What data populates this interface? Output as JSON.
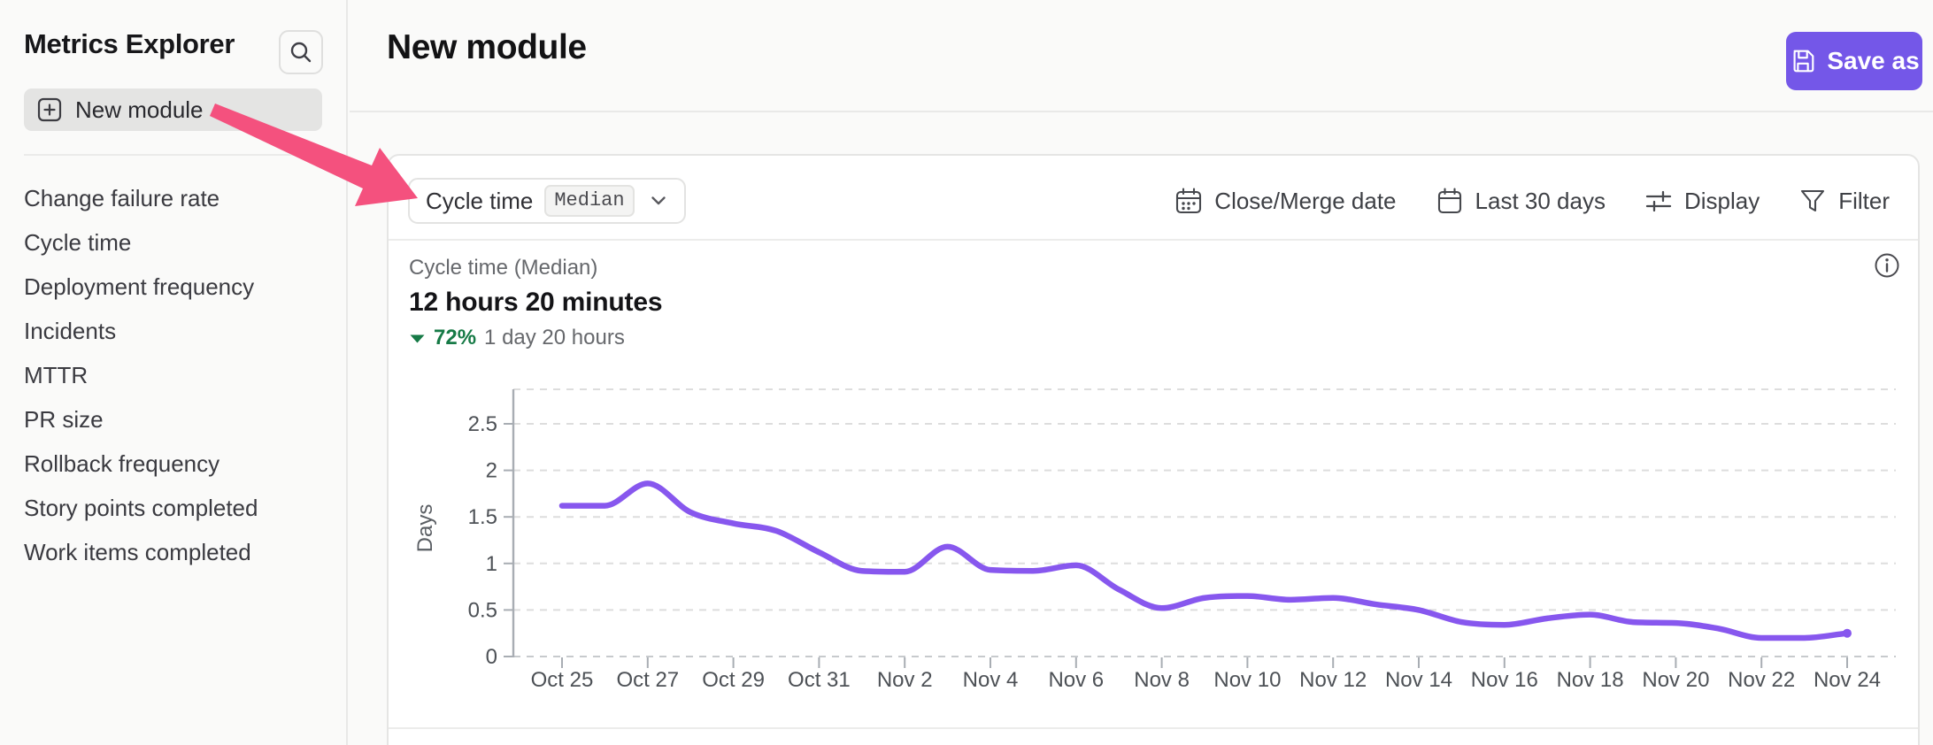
{
  "sidebar": {
    "title": "Metrics Explorer",
    "new_module_label": "New module",
    "items": [
      "Change failure rate",
      "Cycle time",
      "Deployment frequency",
      "Incidents",
      "MTTR",
      "PR size",
      "Rollback frequency",
      "Story points completed",
      "Work items completed"
    ]
  },
  "header": {
    "title": "New module",
    "save_as_label": "Save as"
  },
  "toolbar": {
    "metric_label": "Cycle time",
    "metric_badge": "Median",
    "controls": [
      {
        "label": "Close/Merge date",
        "icon": "calendar-dots-icon",
        "name": "close-merge-date-button"
      },
      {
        "label": "Last 30 days",
        "icon": "calendar-icon",
        "name": "date-range-button"
      },
      {
        "label": "Display",
        "icon": "sliders-icon",
        "name": "display-button"
      },
      {
        "label": "Filter",
        "icon": "funnel-icon",
        "name": "filter-button"
      }
    ]
  },
  "chart_header": {
    "subtitle": "Cycle time (Median)",
    "value": "12 hours 20 minutes",
    "trend_direction": "down",
    "trend_pct": "72%",
    "trend_comparison": "1 day 20 hours"
  },
  "chart_data": {
    "type": "line",
    "title": "Cycle time (Median)",
    "xlabel": "",
    "ylabel": "Days",
    "ylim": [
      0,
      2.9
    ],
    "yticks": [
      0,
      0.5,
      1,
      1.5,
      2,
      2.5
    ],
    "grid": true,
    "legend": false,
    "x": [
      "Oct 25",
      "Oct 26",
      "Oct 27",
      "Oct 28",
      "Oct 29",
      "Oct 30",
      "Oct 31",
      "Nov 1",
      "Nov 2",
      "Nov 3",
      "Nov 4",
      "Nov 5",
      "Nov 6",
      "Nov 7",
      "Nov 8",
      "Nov 9",
      "Nov 10",
      "Nov 11",
      "Nov 12",
      "Nov 13",
      "Nov 14",
      "Nov 15",
      "Nov 16",
      "Nov 17",
      "Nov 18",
      "Nov 19",
      "Nov 20",
      "Nov 21",
      "Nov 22",
      "Nov 23",
      "Nov 24"
    ],
    "x_tick_labels": [
      "Oct 25",
      "Oct 27",
      "Oct 29",
      "Oct 31",
      "Nov 2",
      "Nov 4",
      "Nov 6",
      "Nov 8",
      "Nov 10",
      "Nov 12",
      "Nov 14",
      "Nov 16",
      "Nov 18",
      "Nov 20",
      "Nov 22",
      "Nov 24"
    ],
    "series": [
      {
        "name": "Cycle time (Median)",
        "values": [
          1.62,
          1.62,
          1.86,
          1.55,
          1.43,
          1.35,
          1.12,
          0.92,
          0.91,
          1.18,
          0.93,
          0.92,
          0.98,
          0.72,
          0.52,
          0.63,
          0.65,
          0.61,
          0.63,
          0.56,
          0.5,
          0.37,
          0.34,
          0.41,
          0.45,
          0.37,
          0.36,
          0.3,
          0.2,
          0.2,
          0.25
        ]
      }
    ]
  },
  "colors": {
    "accent_purple": "#7457e8",
    "line_purple": "#8757ee",
    "trend_green": "#167a46",
    "annotation_pink": "#f4517e",
    "grid_gray": "#dddddd",
    "axis_gray": "#a8adb3",
    "tick_text": "#4d5156"
  }
}
